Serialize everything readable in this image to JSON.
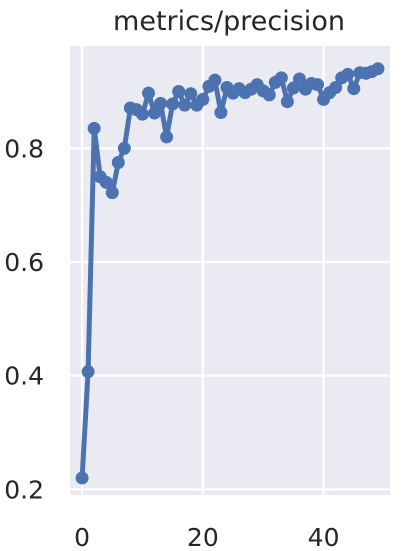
{
  "chart_data": {
    "type": "line",
    "title": "metrics/precision",
    "xlabel": "",
    "ylabel": "",
    "xlim": [
      -2,
      51
    ],
    "ylim": [
      0.19,
      0.98
    ],
    "xticks": [
      0,
      20,
      40
    ],
    "xtick_labels": [
      "0",
      "20",
      "40"
    ],
    "yticks": [
      0.2,
      0.4,
      0.6,
      0.8
    ],
    "ytick_labels": [
      "0.2",
      "0.4",
      "0.6",
      "0.8"
    ],
    "grid": true,
    "colors": {
      "line": "#4c72b0",
      "background": "#eaeaf2",
      "grid": "#ffffff",
      "text": "#262626"
    },
    "series": [
      {
        "x": [
          0,
          1,
          2,
          3,
          4,
          5,
          6,
          7,
          8,
          9,
          10,
          11,
          12,
          13,
          14,
          15,
          16,
          17,
          18,
          19,
          20,
          21,
          22,
          23,
          24,
          25,
          26,
          27,
          28,
          29,
          30,
          31,
          32,
          33,
          34,
          35,
          36,
          37,
          38,
          39,
          40,
          41,
          42,
          43,
          44,
          45,
          46,
          47,
          48,
          49
        ],
        "values": [
          0.22,
          0.407,
          0.835,
          0.75,
          0.74,
          0.722,
          0.775,
          0.8,
          0.871,
          0.868,
          0.86,
          0.897,
          0.862,
          0.879,
          0.82,
          0.878,
          0.9,
          0.876,
          0.896,
          0.876,
          0.886,
          0.909,
          0.92,
          0.863,
          0.907,
          0.897,
          0.905,
          0.898,
          0.904,
          0.912,
          0.901,
          0.894,
          0.916,
          0.924,
          0.882,
          0.906,
          0.922,
          0.904,
          0.914,
          0.912,
          0.886,
          0.898,
          0.907,
          0.924,
          0.93,
          0.905,
          0.933,
          0.932,
          0.935,
          0.94
        ]
      }
    ]
  }
}
